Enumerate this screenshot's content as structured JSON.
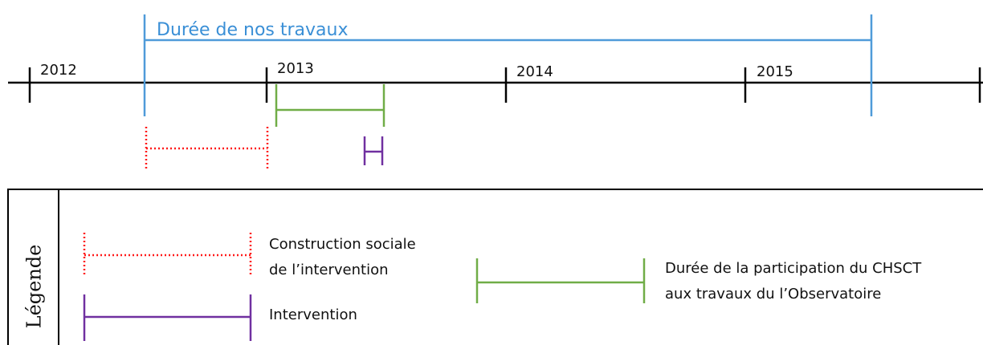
{
  "title": "Durée de nos travaux",
  "timeline": {
    "years": [
      "2012",
      "2013",
      "2014",
      "2015"
    ]
  },
  "legend": {
    "title": "Légende",
    "items": [
      {
        "lines": [
          "Construction sociale",
          "de l’intervention"
        ]
      },
      {
        "lines": [
          "Intervention"
        ]
      },
      {
        "lines": [
          "Durée de la participation du CHSCT",
          "aux travaux du l’Observatoire"
        ]
      }
    ]
  }
}
